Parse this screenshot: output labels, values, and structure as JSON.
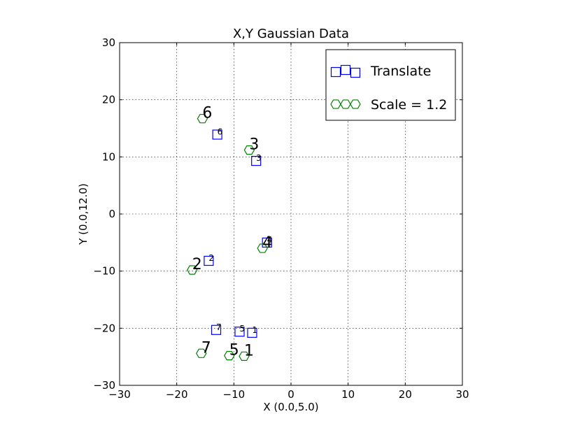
{
  "chart_data": {
    "type": "scatter",
    "title": "X,Y Gaussian Data",
    "xlabel": "X (0.0,5.0)",
    "ylabel": "Y (0.0,12.0)",
    "xlim": [
      -30,
      30
    ],
    "ylim": [
      -30,
      30
    ],
    "xticks": [
      -30,
      -20,
      -10,
      0,
      10,
      20,
      30
    ],
    "yticks": [
      -30,
      -20,
      -10,
      0,
      10,
      20,
      30
    ],
    "xtick_labels": [
      "−30",
      "−20",
      "−10",
      "0",
      "10",
      "20",
      "30"
    ],
    "ytick_labels": [
      "−30",
      "−20",
      "−10",
      "0",
      "10",
      "20",
      "30"
    ],
    "grid": true,
    "legend_position": "top-right",
    "series": [
      {
        "name": "Translate",
        "marker": "square",
        "color": "#0000ff",
        "label_size": "small",
        "points": [
          {
            "x": -6.8,
            "y": -20.8,
            "label": "1"
          },
          {
            "x": -14.4,
            "y": -8.2,
            "label": "2"
          },
          {
            "x": -6.1,
            "y": 9.3,
            "label": "3"
          },
          {
            "x": -4.2,
            "y": -5.0,
            "label": "4"
          },
          {
            "x": -9.0,
            "y": -20.6,
            "label": "5"
          },
          {
            "x": -12.9,
            "y": 13.9,
            "label": "6"
          },
          {
            "x": -13.1,
            "y": -20.3,
            "label": "7"
          }
        ]
      },
      {
        "name": "Scale = 1.2",
        "marker": "hexagon",
        "color": "#008000",
        "label_size": "large",
        "points": [
          {
            "x": -8.2,
            "y": -24.9,
            "label": "1"
          },
          {
            "x": -17.3,
            "y": -9.8,
            "label": "2"
          },
          {
            "x": -7.3,
            "y": 11.2,
            "label": "3"
          },
          {
            "x": -5.0,
            "y": -6.0,
            "label": "4"
          },
          {
            "x": -10.8,
            "y": -24.8,
            "label": "5"
          },
          {
            "x": -15.5,
            "y": 16.7,
            "label": "6"
          },
          {
            "x": -15.7,
            "y": -24.4,
            "label": "7"
          }
        ]
      }
    ]
  }
}
